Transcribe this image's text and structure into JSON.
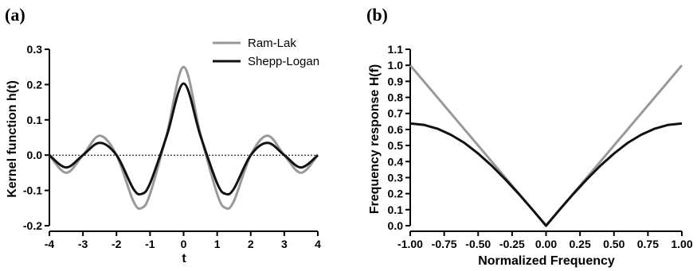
{
  "chart_data": [
    {
      "panel_label": "(a)",
      "type": "line",
      "xlabel": "t",
      "ylabel": "Kernel function h(t)",
      "xlim": [
        -4,
        4
      ],
      "ylim": [
        -0.2,
        0.3
      ],
      "xticks": [
        "-4",
        "-3",
        "-2",
        "-1",
        "0",
        "1",
        "2",
        "3",
        "4"
      ],
      "yticks": [
        "-0.2",
        "-0.1",
        "0.0",
        "0.1",
        "0.2",
        "0.3"
      ],
      "zero_line": "dotted",
      "grid": false,
      "legend_position": "top-right",
      "series": [
        {
          "name": "Ram-Lak",
          "color": "#999999",
          "x": [
            -4,
            -3.5,
            -3,
            -2.5,
            -2,
            -1.5,
            -1.25,
            -1,
            -0.5,
            0,
            0.5,
            1,
            1.25,
            1.5,
            2,
            2.5,
            3,
            3.5,
            4
          ],
          "y": [
            0.0,
            -0.05,
            0.0,
            0.055,
            0.0,
            -0.13,
            -0.15,
            -0.11,
            0.06,
            0.25,
            0.06,
            -0.11,
            -0.15,
            -0.13,
            0.0,
            0.055,
            0.0,
            -0.05,
            0.0
          ]
        },
        {
          "name": "Shepp-Logan",
          "color": "#111111",
          "x": [
            -4,
            -3.5,
            -3,
            -2.5,
            -2,
            -1.5,
            -1.25,
            -1,
            -0.5,
            0,
            0.5,
            1,
            1.25,
            1.5,
            2,
            2.5,
            3,
            3.5,
            4
          ],
          "y": [
            0.0,
            -0.035,
            0.0,
            0.035,
            0.0,
            -0.095,
            -0.11,
            -0.08,
            0.055,
            0.203,
            0.055,
            -0.08,
            -0.11,
            -0.095,
            0.0,
            0.035,
            0.0,
            -0.035,
            0.0
          ]
        }
      ]
    },
    {
      "panel_label": "(b)",
      "type": "line",
      "xlabel": "Normalized Frequency",
      "ylabel": "Frequency response H(f)",
      "xlim": [
        -1.0,
        1.0
      ],
      "ylim": [
        0.0,
        1.1
      ],
      "xticks": [
        "-1.00",
        "-0.75",
        "-0.50",
        "-0.25",
        "0.00",
        "0.25",
        "0.50",
        "0.75",
        "1.00"
      ],
      "yticks": [
        "0.0",
        "0.1",
        "0.2",
        "0.3",
        "0.4",
        "0.5",
        "0.6",
        "0.7",
        "0.8",
        "0.9",
        "1.0",
        "1.1"
      ],
      "grid": false,
      "series": [
        {
          "name": "Ram-Lak",
          "color": "#999999",
          "x": [
            -1.0,
            0.0,
            1.0
          ],
          "y": [
            1.0,
            0.0,
            1.0
          ]
        },
        {
          "name": "Shepp-Logan",
          "color": "#111111",
          "x": [
            -1.0,
            -0.9,
            -0.8,
            -0.7,
            -0.6,
            -0.5,
            -0.4,
            -0.3,
            -0.2,
            -0.1,
            0.0,
            0.1,
            0.2,
            0.3,
            0.4,
            0.5,
            0.6,
            0.7,
            0.8,
            0.9,
            1.0
          ],
          "y": [
            0.637,
            0.629,
            0.605,
            0.567,
            0.516,
            0.45,
            0.374,
            0.289,
            0.197,
            0.1,
            0.0,
            0.1,
            0.197,
            0.289,
            0.374,
            0.45,
            0.516,
            0.567,
            0.605,
            0.629,
            0.637
          ]
        }
      ]
    }
  ]
}
